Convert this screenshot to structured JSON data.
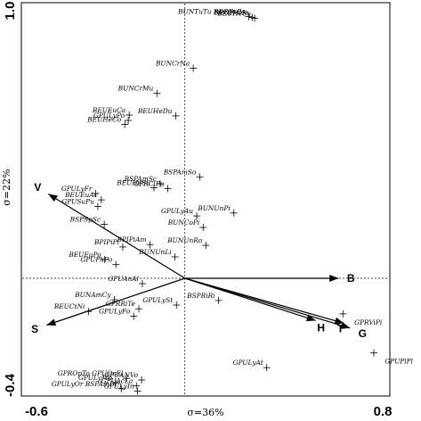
{
  "chart_data": {
    "type": "scatter",
    "title": "",
    "xlabel": "σ=36%",
    "ylabel": "σ=22%",
    "xlim": [
      -0.6,
      0.8
    ],
    "ylim": [
      -0.4,
      1.0
    ],
    "x_ticks": [
      {
        "value": -0.6,
        "label": "-0.6"
      },
      {
        "value": 0.8,
        "label": "0.8"
      }
    ],
    "y_ticks": [
      {
        "value": 1.0,
        "label": "1.0"
      },
      {
        "value": -0.4,
        "label": "-0.4"
      }
    ],
    "reference_lines": {
      "x": 0,
      "y": 0,
      "style": "dotted"
    },
    "vectors": [
      {
        "name": "V",
        "x": -0.552,
        "y": 0.315
      },
      {
        "name": "S",
        "x": -0.559,
        "y": -0.175
      },
      {
        "name": "B",
        "x": 0.621,
        "y": 0.0
      },
      {
        "name": "H",
        "x": 0.529,
        "y": -0.158
      },
      {
        "name": "T",
        "x": 0.643,
        "y": -0.168
      },
      {
        "name": "G",
        "x": 0.668,
        "y": -0.186
      }
    ],
    "points": [
      {
        "label": "BUNTuTu BDRDrPo",
        "x": 0.258,
        "y": 0.978
      },
      {
        "label": "BEUHeHe",
        "x": 0.272,
        "y": 0.975
      },
      {
        "label": "BEUHeSu",
        "x": 0.282,
        "y": 0.972
      },
      {
        "label": "BUNCrNa",
        "x": 0.034,
        "y": 0.785
      },
      {
        "label": "BUNCrMu",
        "x": -0.113,
        "y": 0.691
      },
      {
        "label": "BEUEuCa",
        "x": -0.225,
        "y": 0.61
      },
      {
        "label": "BEUHeDu",
        "x": -0.037,
        "y": 0.607
      },
      {
        "label": "GPULyPo",
        "x": -0.229,
        "y": 0.59
      },
      {
        "label": "BEUHeCo",
        "x": -0.243,
        "y": 0.575
      },
      {
        "label": "BSPAmSo",
        "x": 0.06,
        "y": 0.379
      },
      {
        "label": "BSPAmSc",
        "x": -0.1,
        "y": 0.353
      },
      {
        "label": "BEUHeSu",
        "x": -0.125,
        "y": 0.338
      },
      {
        "label": "GPRClPu",
        "x": -0.069,
        "y": 0.335
      },
      {
        "label": "GPULyFr",
        "x": -0.361,
        "y": 0.317
      },
      {
        "label": "BEUEuAc",
        "x": -0.338,
        "y": 0.293
      },
      {
        "label": "BUNUnPi",
        "x": 0.198,
        "y": 0.244
      },
      {
        "label": "GPULyAu",
        "x": 0.048,
        "y": 0.233
      },
      {
        "label": "GPUSuPu",
        "x": -0.352,
        "y": 0.268
      },
      {
        "label": "BUNCoPi",
        "x": 0.074,
        "y": 0.19
      },
      {
        "label": "BSPSpSc",
        "x": -0.326,
        "y": 0.202
      },
      {
        "label": "BUNUnRo",
        "x": 0.085,
        "y": 0.123
      },
      {
        "label": "BPIPiPi",
        "x": -0.251,
        "y": 0.117
      },
      {
        "label": "BPIPiAm",
        "x": -0.141,
        "y": 0.126
      },
      {
        "label": "BUNUnLi",
        "x": -0.04,
        "y": 0.08
      },
      {
        "label": "GPUPhPo",
        "x": -0.279,
        "y": 0.051
      },
      {
        "label": "BEUEuPo",
        "x": -0.324,
        "y": 0.07
      },
      {
        "label": "GPUAnAl",
        "x": -0.172,
        "y": -0.02
      },
      {
        "label": "BSPRiRi",
        "x": 0.136,
        "y": -0.083
      },
      {
        "label": "BUNAmCy",
        "x": -0.285,
        "y": -0.08
      },
      {
        "label": "GPRRiTe",
        "x": -0.186,
        "y": -0.114
      },
      {
        "label": "GPULySt",
        "x": -0.034,
        "y": -0.1
      },
      {
        "label": "BEUCtNi",
        "x": -0.39,
        "y": -0.124
      },
      {
        "label": "GPULyFo",
        "x": -0.207,
        "y": -0.142
      },
      {
        "label": "GPRViPi",
        "x": 0.639,
        "y": -0.133
      },
      {
        "label": "GPUPlPl",
        "x": 0.764,
        "y": -0.279
      },
      {
        "label": "GPULyAt",
        "x": 0.331,
        "y": -0.334
      },
      {
        "label": "GPROpTo GPUOcEl",
        "x": -0.236,
        "y": -0.374
      },
      {
        "label": "GPUANVo",
        "x": -0.175,
        "y": -0.38
      },
      {
        "label": "GPULyMo",
        "x": -0.28,
        "y": -0.39
      },
      {
        "label": "GPUAcLa",
        "x": -0.196,
        "y": -0.402
      },
      {
        "label": "GPULyOr BSPAmDr",
        "x": -0.257,
        "y": -0.413
      },
      {
        "label": "GPULyIn",
        "x": -0.191,
        "y": -0.422
      }
    ]
  }
}
